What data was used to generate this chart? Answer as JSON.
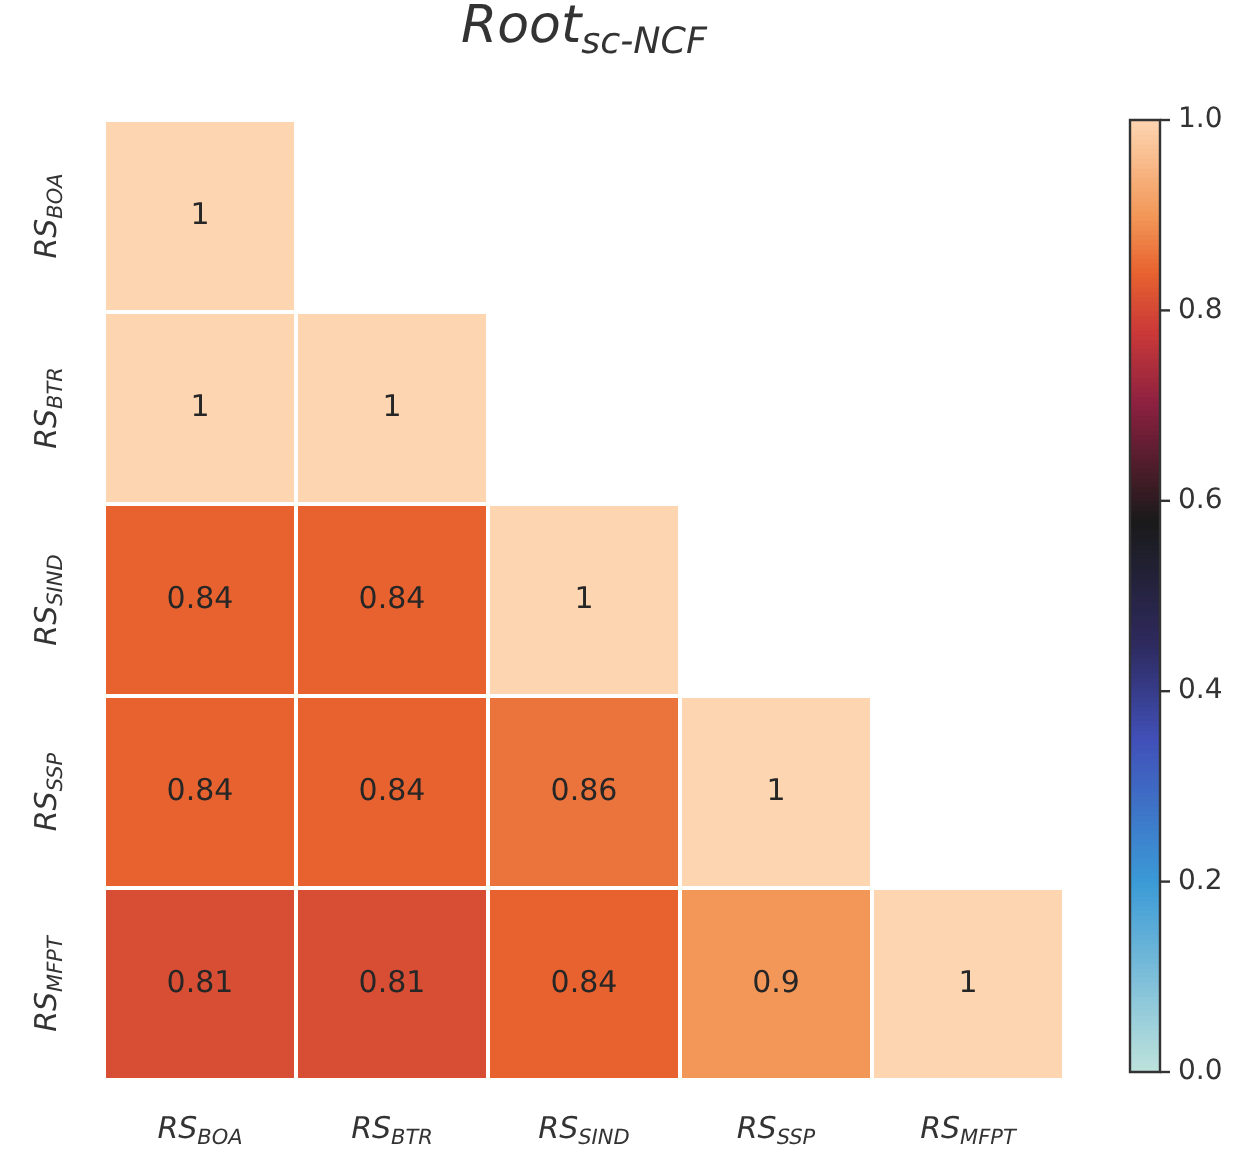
{
  "chart_data": {
    "type": "heatmap",
    "title": "Root$_{sc-NCF}$",
    "categories": [
      "RS$_{BOA}$",
      "RS$_{BTR}$",
      "RS$_{SIND}$",
      "RS$_{SSP}$",
      "RS$_{MFPT}$"
    ],
    "y_categories": [
      "RS$_{BOA}$",
      "RS$_{BTR}$",
      "RS$_{SIND}$",
      "RS$_{SSP}$",
      "RS$_{MFPT}$"
    ],
    "cells": [
      [
        1,
        null,
        null,
        null,
        null
      ],
      [
        1,
        1,
        null,
        null,
        null
      ],
      [
        0.84,
        0.84,
        1,
        null,
        null
      ],
      [
        0.84,
        0.84,
        0.86,
        1,
        null
      ],
      [
        0.81,
        0.81,
        0.84,
        0.9,
        1
      ]
    ],
    "data_labels": true,
    "clim": [
      0,
      1
    ],
    "cticks": [
      {
        "value": 0,
        "label": "0.0"
      },
      {
        "value": 0.2,
        "label": "0.2"
      },
      {
        "value": 0.4,
        "label": "0.4"
      },
      {
        "value": 0.6,
        "label": "0.6"
      },
      {
        "value": 0.8,
        "label": "0.8"
      },
      {
        "value": 1,
        "label": "1.0"
      }
    ]
  }
}
